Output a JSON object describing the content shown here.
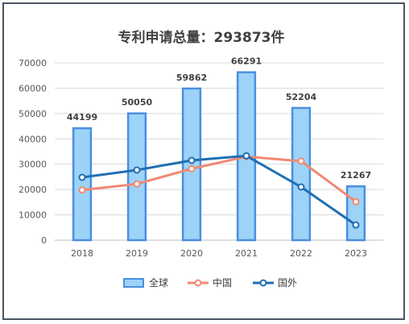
{
  "chart_data": {
    "type": "bar",
    "title": "专利申请总量：293873件",
    "categories": [
      "2018",
      "2019",
      "2020",
      "2021",
      "2022",
      "2023"
    ],
    "ylim": [
      0,
      70000
    ],
    "yticks": [
      "0",
      "10000",
      "20000",
      "30000",
      "40000",
      "50000",
      "60000",
      "70000"
    ],
    "grid": true,
    "legend_position": "bottom",
    "series": [
      {
        "name": "全球",
        "type": "bar",
        "color": "#9dd3f7",
        "edge_color": "#4a8fe0",
        "values": [
          44199,
          50050,
          59862,
          66291,
          52204,
          21267
        ],
        "data_labels": [
          "44199",
          "50050",
          "59862",
          "66291",
          "52204",
          "21267"
        ]
      },
      {
        "name": "中国",
        "type": "line",
        "color": "#ef8a73",
        "values": [
          19800,
          22200,
          28200,
          33000,
          31200,
          15200
        ]
      },
      {
        "name": "国外",
        "type": "line",
        "color": "#1f6fb2",
        "values": [
          24800,
          27700,
          31500,
          33300,
          21000,
          6000
        ]
      }
    ]
  }
}
